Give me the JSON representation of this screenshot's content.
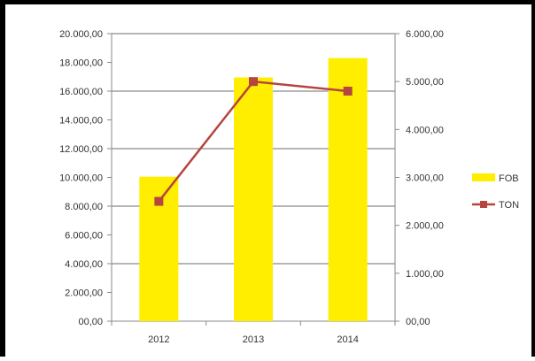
{
  "chart_data": {
    "type": "bar",
    "categories": [
      "2012",
      "2013",
      "2014"
    ],
    "series": [
      {
        "name": "FOB",
        "type": "bar",
        "axis": "left",
        "color": "#ffee00",
        "values": [
          10050,
          16950,
          18300
        ]
      },
      {
        "name": "TON",
        "type": "line",
        "axis": "right",
        "color": "#b5453f",
        "values": [
          2500,
          5000,
          4800
        ]
      }
    ],
    "y_left": {
      "range": [
        0,
        20000
      ],
      "ticks": [
        "00,00",
        "2.000,00",
        "4.000,00",
        "6.000,00",
        "8.000,00",
        "10.000,00",
        "12.000,00",
        "14.000,00",
        "16.000,00",
        "18.000,00",
        "20.000,00"
      ]
    },
    "y_right": {
      "range": [
        0,
        6000
      ],
      "ticks": [
        "00,00",
        "1.000,00",
        "2.000,00",
        "3.000,00",
        "4.000,00",
        "5.000,00",
        "6.000,00"
      ]
    },
    "grid": true,
    "legend": "right",
    "title": "",
    "xlabel": "",
    "ylabel": ""
  }
}
